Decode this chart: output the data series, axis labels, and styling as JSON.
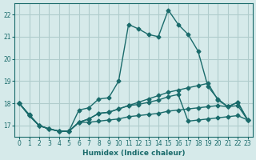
{
  "xlabel": "Humidex (Indice chaleur)",
  "ylabel": "",
  "background_color": "#d6eaea",
  "grid_color": "#b0cccc",
  "line_color": "#1a6b6b",
  "xlim": [
    -0.5,
    23.5
  ],
  "ylim": [
    16.5,
    22.5
  ],
  "yticks": [
    17,
    18,
    19,
    20,
    21,
    22
  ],
  "xticks": [
    0,
    1,
    2,
    3,
    4,
    5,
    6,
    7,
    8,
    9,
    10,
    11,
    12,
    13,
    14,
    15,
    16,
    17,
    18,
    19,
    20,
    21,
    22,
    23
  ],
  "line1_x": [
    0,
    1,
    2,
    3,
    4,
    5,
    6,
    7,
    8,
    9,
    10,
    11,
    12,
    13,
    14,
    15,
    16,
    17,
    18,
    19,
    20,
    21,
    22,
    23
  ],
  "line1_y": [
    18.0,
    17.5,
    17.0,
    16.85,
    16.75,
    16.75,
    17.7,
    17.8,
    18.2,
    18.25,
    19.0,
    21.55,
    21.35,
    21.1,
    21.0,
    22.2,
    21.55,
    21.1,
    20.35,
    18.75,
    18.2,
    17.85,
    18.05,
    17.25
  ],
  "line2_x": [
    0,
    1,
    2,
    3,
    4,
    5,
    6,
    7,
    8,
    9,
    10,
    11,
    12,
    13,
    14,
    15,
    16,
    17,
    18,
    19,
    20,
    21,
    22,
    23
  ],
  "line2_y": [
    18.0,
    17.45,
    17.0,
    16.85,
    16.75,
    16.75,
    17.15,
    17.3,
    17.55,
    17.6,
    17.75,
    17.9,
    18.05,
    18.2,
    18.35,
    18.5,
    18.6,
    18.7,
    18.8,
    18.9,
    18.15,
    17.85,
    18.05,
    17.25
  ],
  "line3_x": [
    0,
    1,
    2,
    3,
    4,
    5,
    6,
    7,
    8,
    9,
    10,
    11,
    12,
    13,
    14,
    15,
    16,
    17,
    18,
    19,
    20,
    21,
    22,
    23
  ],
  "line3_y": [
    18.0,
    17.45,
    17.0,
    16.85,
    16.75,
    16.75,
    17.15,
    17.3,
    17.55,
    17.6,
    17.75,
    17.9,
    17.95,
    18.05,
    18.15,
    18.3,
    18.4,
    17.2,
    17.25,
    17.3,
    17.35,
    17.4,
    17.45,
    17.25
  ],
  "line4_x": [
    0,
    1,
    2,
    3,
    4,
    5,
    6,
    7,
    8,
    9,
    10,
    11,
    12,
    13,
    14,
    15,
    16,
    17,
    18,
    19,
    20,
    21,
    22,
    23
  ],
  "line4_y": [
    18.0,
    17.45,
    17.0,
    16.85,
    16.75,
    16.75,
    17.15,
    17.15,
    17.2,
    17.25,
    17.3,
    17.4,
    17.45,
    17.5,
    17.55,
    17.65,
    17.7,
    17.75,
    17.8,
    17.85,
    17.9,
    17.85,
    17.9,
    17.25
  ]
}
